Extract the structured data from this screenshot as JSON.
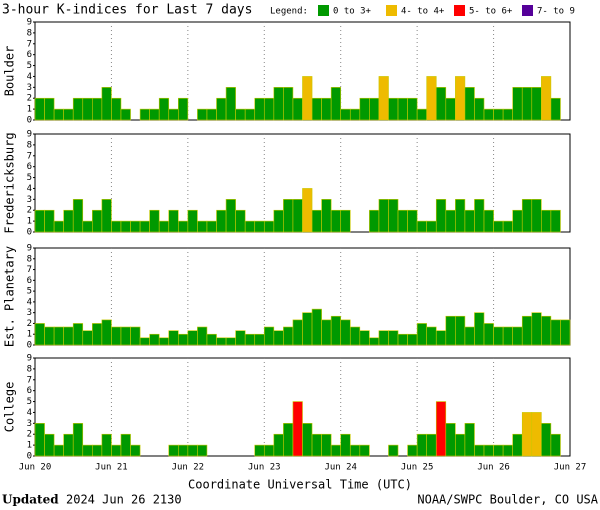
{
  "header": {
    "title": "3-hour K-indices for Last 7 days",
    "legend_title": "Legend:",
    "legend": [
      {
        "label": "0 to 3+",
        "color": "#009900"
      },
      {
        "label": "4- to 4+",
        "color": "#eebb00"
      },
      {
        "label": "5- to 6+",
        "color": "#ff0000"
      },
      {
        "label": "7- to 9",
        "color": "#550099"
      }
    ]
  },
  "x_axis": {
    "labels": [
      "Jun 20",
      "Jun 21",
      "Jun 22",
      "Jun 23",
      "Jun 24",
      "Jun 25",
      "Jun 26",
      "Jun 27"
    ],
    "title": "Coordinate Universal Time (UTC)"
  },
  "footer": {
    "updated": "Updated",
    "date": "2024 Jun 26 2130",
    "source": "NOAA/SWPC Boulder, CO USA"
  },
  "chart_data": [
    {
      "type": "bar",
      "ylabel": "Boulder",
      "ylim": [
        0,
        9
      ],
      "yticks": [
        0,
        1,
        2,
        3,
        4,
        5,
        6,
        7,
        8,
        9
      ],
      "values": [
        2,
        2,
        1,
        1,
        2,
        2,
        2,
        3,
        2,
        1,
        0,
        1,
        1,
        2,
        1,
        2,
        0,
        1,
        1,
        2,
        3,
        1,
        1,
        2,
        2,
        3,
        3,
        2,
        4,
        2,
        2,
        3,
        1,
        1,
        2,
        2,
        4,
        2,
        2,
        2,
        1,
        4,
        3,
        2,
        4,
        3,
        2,
        1,
        1,
        1,
        3,
        3,
        3,
        4,
        2,
        0
      ],
      "colors": [
        "#009900",
        "#009900",
        "#009900",
        "#009900",
        "#009900",
        "#009900",
        "#009900",
        "#009900",
        "#009900",
        "#009900",
        "#009900",
        "#009900",
        "#009900",
        "#009900",
        "#009900",
        "#009900",
        "#009900",
        "#009900",
        "#009900",
        "#009900",
        "#009900",
        "#009900",
        "#009900",
        "#009900",
        "#009900",
        "#009900",
        "#009900",
        "#009900",
        "#eebb00",
        "#009900",
        "#009900",
        "#009900",
        "#009900",
        "#009900",
        "#009900",
        "#009900",
        "#eebb00",
        "#009900",
        "#009900",
        "#009900",
        "#009900",
        "#eebb00",
        "#009900",
        "#009900",
        "#eebb00",
        "#009900",
        "#009900",
        "#009900",
        "#009900",
        "#009900",
        "#009900",
        "#009900",
        "#009900",
        "#eebb00",
        "#009900",
        "#009900"
      ]
    },
    {
      "type": "bar",
      "ylabel": "Fredericksburg",
      "ylim": [
        0,
        9
      ],
      "yticks": [
        0,
        1,
        2,
        3,
        4,
        5,
        6,
        7,
        8,
        9
      ],
      "values": [
        2,
        2,
        1,
        2,
        3,
        1,
        2,
        3,
        1,
        1,
        1,
        1,
        2,
        1,
        2,
        1,
        2,
        1,
        1,
        2,
        3,
        2,
        1,
        1,
        1,
        2,
        3,
        3,
        4,
        2,
        3,
        2,
        2,
        0,
        0,
        2,
        3,
        3,
        2,
        2,
        1,
        1,
        3,
        2,
        3,
        2,
        3,
        2,
        1,
        1,
        2,
        3,
        3,
        2,
        2,
        0
      ],
      "colors": [
        "#009900",
        "#009900",
        "#009900",
        "#009900",
        "#009900",
        "#009900",
        "#009900",
        "#009900",
        "#009900",
        "#009900",
        "#009900",
        "#009900",
        "#009900",
        "#009900",
        "#009900",
        "#009900",
        "#009900",
        "#009900",
        "#009900",
        "#009900",
        "#009900",
        "#009900",
        "#009900",
        "#009900",
        "#009900",
        "#009900",
        "#009900",
        "#009900",
        "#eebb00",
        "#009900",
        "#009900",
        "#009900",
        "#009900",
        "#009900",
        "#009900",
        "#009900",
        "#009900",
        "#009900",
        "#009900",
        "#009900",
        "#009900",
        "#009900",
        "#009900",
        "#009900",
        "#009900",
        "#009900",
        "#009900",
        "#009900",
        "#009900",
        "#009900",
        "#009900",
        "#009900",
        "#009900",
        "#009900",
        "#009900",
        "#009900"
      ]
    },
    {
      "type": "bar",
      "ylabel": "Est. Planetary",
      "ylim": [
        0,
        9
      ],
      "yticks": [
        0,
        1,
        2,
        3,
        4,
        5,
        6,
        7,
        8,
        9
      ],
      "values": [
        2,
        1.67,
        1.67,
        1.67,
        2,
        1.33,
        2,
        2.33,
        1.67,
        1.67,
        1.67,
        0.67,
        1,
        0.67,
        1.33,
        1,
        1.33,
        1.67,
        1,
        0.67,
        0.67,
        1.33,
        1,
        1,
        1.67,
        1.33,
        1.67,
        2.33,
        3,
        3.33,
        2.33,
        2.67,
        2.33,
        1.67,
        1.33,
        0.67,
        1.33,
        1.33,
        1,
        1,
        2,
        1.67,
        1.33,
        2.67,
        2.67,
        1.67,
        3,
        2,
        1.67,
        1.67,
        1.67,
        2.67,
        3,
        2.67,
        2.33,
        2.33
      ],
      "colors": [
        "#009900",
        "#009900",
        "#009900",
        "#009900",
        "#009900",
        "#009900",
        "#009900",
        "#009900",
        "#009900",
        "#009900",
        "#009900",
        "#009900",
        "#009900",
        "#009900",
        "#009900",
        "#009900",
        "#009900",
        "#009900",
        "#009900",
        "#009900",
        "#009900",
        "#009900",
        "#009900",
        "#009900",
        "#009900",
        "#009900",
        "#009900",
        "#009900",
        "#009900",
        "#009900",
        "#009900",
        "#009900",
        "#009900",
        "#009900",
        "#009900",
        "#009900",
        "#009900",
        "#009900",
        "#009900",
        "#009900",
        "#009900",
        "#009900",
        "#009900",
        "#009900",
        "#009900",
        "#009900",
        "#009900",
        "#009900",
        "#009900",
        "#009900",
        "#009900",
        "#009900",
        "#009900",
        "#009900",
        "#009900",
        "#009900"
      ]
    },
    {
      "type": "bar",
      "ylabel": "College",
      "ylim": [
        0,
        9
      ],
      "yticks": [
        0,
        1,
        2,
        3,
        4,
        5,
        6,
        7,
        8,
        9
      ],
      "values": [
        3,
        2,
        1,
        2,
        3,
        1,
        1,
        2,
        1,
        2,
        1,
        0,
        0,
        0,
        1,
        1,
        1,
        1,
        0,
        0,
        0,
        0,
        0,
        1,
        1,
        2,
        3,
        5,
        3,
        2,
        2,
        1,
        2,
        1,
        1,
        0,
        0,
        1,
        0,
        1,
        2,
        2,
        5,
        3,
        2,
        3,
        1,
        1,
        1,
        1,
        2,
        4,
        4,
        3,
        2,
        0
      ],
      "colors": [
        "#009900",
        "#009900",
        "#009900",
        "#009900",
        "#009900",
        "#009900",
        "#009900",
        "#009900",
        "#009900",
        "#009900",
        "#009900",
        "#009900",
        "#009900",
        "#009900",
        "#009900",
        "#009900",
        "#009900",
        "#009900",
        "#009900",
        "#009900",
        "#009900",
        "#009900",
        "#009900",
        "#009900",
        "#009900",
        "#009900",
        "#009900",
        "#ff0000",
        "#009900",
        "#009900",
        "#009900",
        "#009900",
        "#009900",
        "#009900",
        "#009900",
        "#009900",
        "#009900",
        "#009900",
        "#009900",
        "#009900",
        "#009900",
        "#009900",
        "#ff0000",
        "#009900",
        "#009900",
        "#009900",
        "#009900",
        "#009900",
        "#009900",
        "#009900",
        "#009900",
        "#eebb00",
        "#eebb00",
        "#009900",
        "#009900",
        "#009900"
      ]
    }
  ]
}
